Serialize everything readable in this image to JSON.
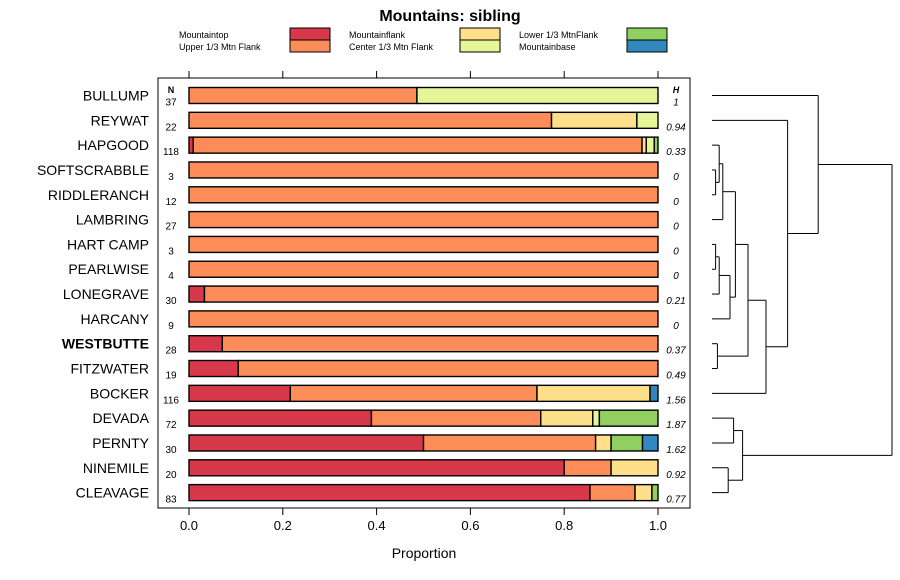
{
  "chart_data": {
    "type": "bar",
    "orientation": "horizontal",
    "stacked": true,
    "title": "Mountains: sibling",
    "xlabel": "Proportion",
    "ylabel": "",
    "xlim": [
      0,
      1
    ],
    "xticks": [
      "0.0",
      "0.2",
      "0.4",
      "0.6",
      "0.8",
      "1.0"
    ],
    "n_header": "N",
    "h_header": "H",
    "highlighted_category": "WESTBUTTE",
    "legend": [
      {
        "name": "Mountaintop",
        "color": "#d7394b"
      },
      {
        "name": "Upper 1/3 Mtn Flank",
        "color": "#fc8d59"
      },
      {
        "name": "Mountainflank",
        "color": "#fee08b"
      },
      {
        "name": "Center 1/3 Mtn Flank",
        "color": "#e6f598"
      },
      {
        "name": "Lower 1/3 MtnFlank",
        "color": "#91cf60"
      },
      {
        "name": "Mountainbase",
        "color": "#3288bd"
      }
    ],
    "rows": [
      {
        "label": "BULLUMP",
        "n": "37",
        "h": "1",
        "values": [
          0,
          0.486,
          0,
          0.514,
          0,
          0
        ]
      },
      {
        "label": "REYWAT",
        "n": "22",
        "h": "0.94",
        "values": [
          0,
          0.773,
          0.182,
          0.045,
          0,
          0
        ]
      },
      {
        "label": "HAPGOOD",
        "n": "118",
        "h": "0.33",
        "values": [
          0.009,
          0.957,
          0.009,
          0.017,
          0.008,
          0
        ]
      },
      {
        "label": "SOFTSCRABBLE",
        "n": "3",
        "h": "0",
        "values": [
          0,
          1,
          0,
          0,
          0,
          0
        ]
      },
      {
        "label": "RIDDLERANCH",
        "n": "12",
        "h": "0",
        "values": [
          0,
          1,
          0,
          0,
          0,
          0
        ]
      },
      {
        "label": "LAMBRING",
        "n": "27",
        "h": "0",
        "values": [
          0,
          1,
          0,
          0,
          0,
          0
        ]
      },
      {
        "label": "HART CAMP",
        "n": "3",
        "h": "0",
        "values": [
          0,
          1,
          0,
          0,
          0,
          0
        ]
      },
      {
        "label": "PEARLWISE",
        "n": "4",
        "h": "0",
        "values": [
          0,
          1,
          0,
          0,
          0,
          0
        ]
      },
      {
        "label": "LONEGRAVE",
        "n": "30",
        "h": "0.21",
        "values": [
          0.033,
          0.967,
          0,
          0,
          0,
          0
        ]
      },
      {
        "label": "HARCANY",
        "n": "9",
        "h": "0",
        "values": [
          0,
          1,
          0,
          0,
          0,
          0
        ]
      },
      {
        "label": "WESTBUTTE",
        "n": "28",
        "h": "0.37",
        "values": [
          0.071,
          0.929,
          0,
          0,
          0,
          0
        ]
      },
      {
        "label": "FITZWATER",
        "n": "19",
        "h": "0.49",
        "values": [
          0.105,
          0.895,
          0,
          0,
          0,
          0
        ]
      },
      {
        "label": "BOCKER",
        "n": "116",
        "h": "1.56",
        "values": [
          0.216,
          0.526,
          0.241,
          0,
          0,
          0.017
        ]
      },
      {
        "label": "DEVADA",
        "n": "72",
        "h": "1.87",
        "values": [
          0.389,
          0.361,
          0.111,
          0.014,
          0.125,
          0
        ]
      },
      {
        "label": "PERNTY",
        "n": "30",
        "h": "1.62",
        "values": [
          0.5,
          0.367,
          0.033,
          0,
          0.067,
          0.033
        ]
      },
      {
        "label": "NINEMILE",
        "n": "20",
        "h": "0.92",
        "values": [
          0.8,
          0.1,
          0.1,
          0,
          0,
          0
        ]
      },
      {
        "label": "CLEAVAGE",
        "n": "83",
        "h": "0.77",
        "values": [
          0.855,
          0.096,
          0.036,
          0,
          0.013,
          0
        ]
      }
    ],
    "dendrogram": {
      "leaf_order": [
        "BULLUMP",
        "REYWAT",
        "HAPGOOD",
        "SOFTSCRABBLE",
        "RIDDLERANCH",
        "LAMBRING",
        "HART CAMP",
        "PEARLWISE",
        "LONEGRAVE",
        "HARCANY",
        "WESTBUTTE",
        "FITZWATER",
        "BOCKER",
        "DEVADA",
        "PERNTY",
        "NINEMILE",
        "CLEAVAGE"
      ],
      "tree": [
        [
          [
            "BULLUMP",
            [
              [
                "REYWAT",
                [
                  [
                    [
                      [
                        [
                          [
                            "HAPGOOD",
                            [
                              "SOFTSCRABBLE",
                              "RIDDLERANCH"
                            ]
                          ],
                          "LAMBRING"
                        ],
                        [
                          [
                            [
                              "HART CAMP",
                              "PEARLWISE"
                            ],
                            "LONEGRAVE"
                          ],
                          "HARCANY"
                        ]
                      ],
                      [
                        "WESTBUTTE",
                        "FITZWATER"
                      ]
                    ],
                    "BOCKER"
                  ]
                ]
              ]
            ]
          ]
        ],
        [
          [
            [
              "DEVADA",
              "PERNTY"
            ],
            [
              "NINEMILE",
              "CLEAVAGE"
            ]
          ]
        ]
      ],
      "merge_heights": {
        "SOFTSCRABBLE+RIDDLERANCH": 0.02,
        "HAPGOOD+(SOFTSCRABBLE+RIDDLERANCH)": 0.04,
        "...+LAMBRING": 0.06,
        "HART CAMP+PEARLWISE": 0.02,
        "(HART CAMP+PEARLWISE)+LONEGRAVE": 0.04,
        "...+HARCANY": 0.1,
        "left-block+right-block": 0.13,
        "WESTBUTTE+FITZWATER": 0.03,
        "...+(WESTBUTTE+FITZWATER)": 0.2,
        "...+BOCKER": 0.3,
        "REYWAT+...": 0.42,
        "BULLUMP+...": 0.59,
        "DEVADA+PERNTY": 0.12,
        "NINEMILE+CLEAVAGE": 0.09,
        "(DEVADA+PERNTY)+(NINEMILE+CLEAVAGE)": 0.17,
        "root": 1.0
      }
    }
  }
}
